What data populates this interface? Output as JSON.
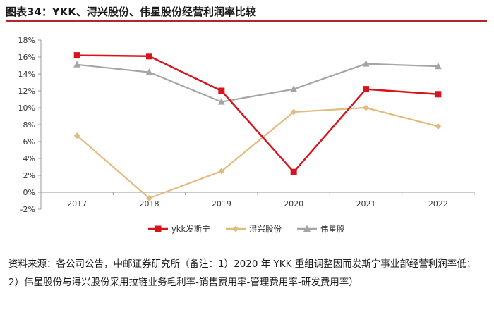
{
  "header": {
    "title": "图表34：YKK、浔兴股份、伟星股份经营利润率比较"
  },
  "chart_data": {
    "type": "line",
    "title": "",
    "xlabel": "",
    "ylabel": "",
    "categories": [
      "2017",
      "2018",
      "2019",
      "2020",
      "2021",
      "2022"
    ],
    "y_ticks": [
      "-2%",
      "0%",
      "2%",
      "4%",
      "6%",
      "8%",
      "10%",
      "12%",
      "14%",
      "16%",
      "18%"
    ],
    "ylim": [
      -2,
      18
    ],
    "grid": false,
    "legend_position": "bottom",
    "series": [
      {
        "name": "ykk发斯宁",
        "color": "#d7141d",
        "marker": "square",
        "values": [
          16.2,
          16.1,
          12.0,
          2.4,
          12.2,
          11.6
        ]
      },
      {
        "name": "浔兴股份",
        "color": "#e2bb7f",
        "marker": "diamond",
        "values": [
          6.7,
          -0.7,
          2.5,
          9.5,
          10.0,
          7.8
        ]
      },
      {
        "name": "伟星股",
        "color": "#a5a5a5",
        "marker": "triangle",
        "values": [
          15.1,
          14.2,
          10.7,
          12.2,
          15.2,
          14.9
        ]
      }
    ]
  },
  "footer": {
    "source": "资料来源：各公司公告，中邮证券研究所（备注：1）2020 年 YKK 重组调整因而发斯宁事业部经营利润率低；2）伟星股份与浔兴股份采用拉链业务毛利率-销售费用率-管理费用率-研发费用率）"
  }
}
